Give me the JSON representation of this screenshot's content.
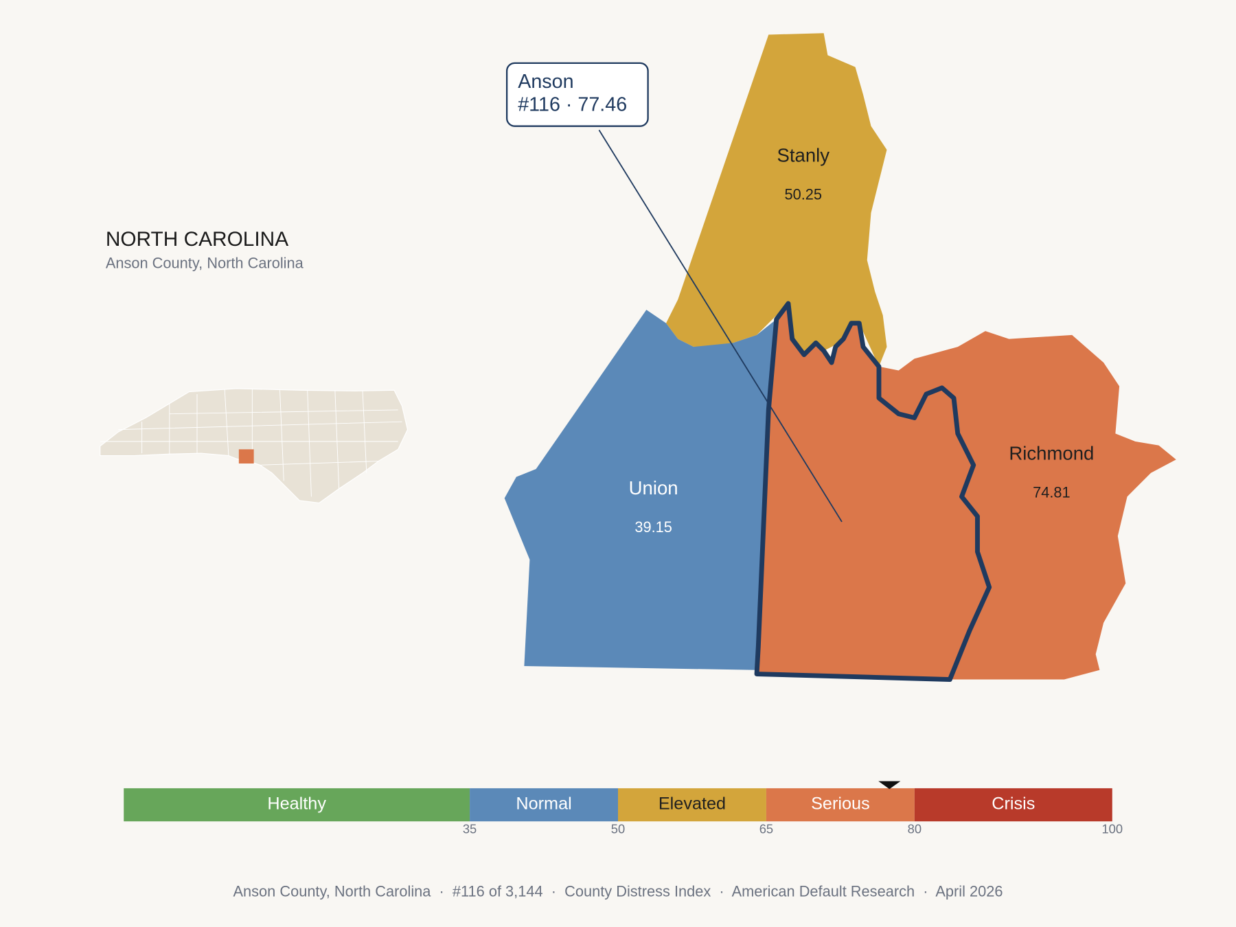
{
  "header": {
    "title": "NORTH CAROLINA",
    "subtitle": "Anson County, North Carolina"
  },
  "counties": [
    {
      "name": "Stanly",
      "value": 50.25,
      "color": "#d3a53b",
      "label_color": "#1f1f1f"
    },
    {
      "name": "Union",
      "value": 39.15,
      "color": "#5b89b8",
      "label_color": "#ffffff"
    },
    {
      "name": "Richmond",
      "value": 74.81,
      "color": "#db774a",
      "label_color": "#1f1f1f"
    },
    {
      "name": "Anson",
      "value": 77.46,
      "color": "#db774a",
      "outline": "#1f3a5f"
    }
  ],
  "callout": {
    "name": "Anson",
    "detail": "#116 · 77.46"
  },
  "scale": {
    "xlim": [
      0,
      100
    ],
    "xticks": [
      35,
      50,
      65,
      80,
      100
    ],
    "bands": [
      {
        "name": "Healthy",
        "color": "#67a65a",
        "text_color": "#ffffff"
      },
      {
        "name": "Normal",
        "color": "#5b89b8",
        "text_color": "#ffffff"
      },
      {
        "name": "Elevated",
        "color": "#d3a53b",
        "text_color": "#1f1f1f"
      },
      {
        "name": "Serious",
        "color": "#db774a",
        "text_color": "#ffffff"
      },
      {
        "name": "Crisis",
        "color": "#b83a2a",
        "text_color": "#ffffff"
      }
    ],
    "marker": 77.46
  },
  "footer": "Anson County, North Carolina  ·  #116 of 3,144  ·  County Distress Index  ·  American Default Research  ·  April 2026"
}
